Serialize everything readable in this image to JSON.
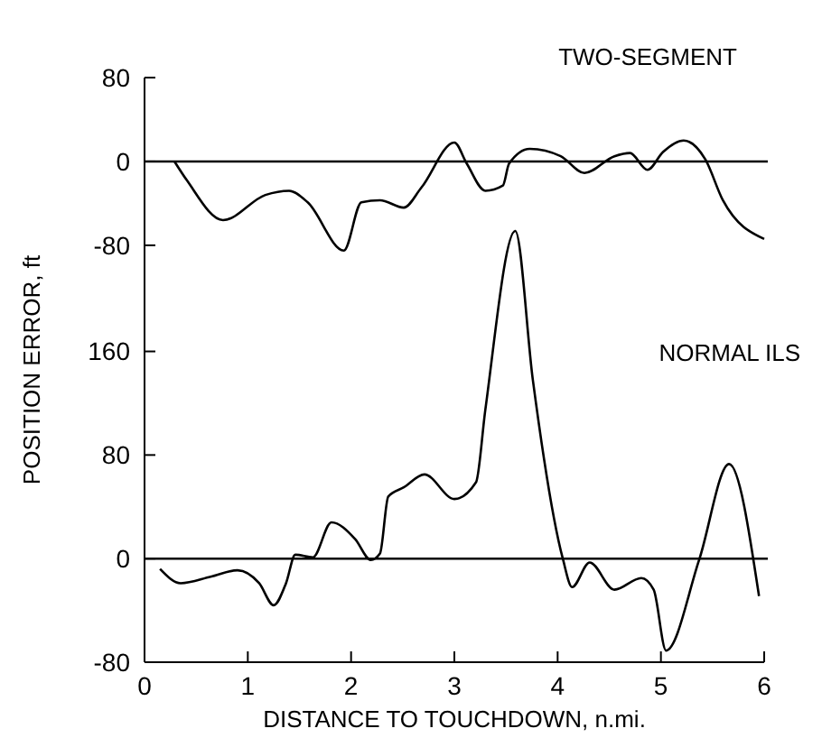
{
  "chart_data": [
    {
      "type": "line",
      "xlim": [
        0,
        6
      ],
      "ylim": [
        -88,
        80
      ],
      "yticks": [
        80,
        0,
        -80
      ],
      "tick_labels": "y",
      "grid": false,
      "ref_lines": [
        {
          "axis": "y",
          "value": 0
        }
      ],
      "series": [
        {
          "name": "TWO-SEGMENT",
          "color": "#000000",
          "x": [
            0.29,
            0.41,
            0.76,
            1.17,
            1.4,
            1.58,
            1.93,
            2.1,
            2.28,
            2.51,
            2.68,
            3.0,
            3.12,
            3.3,
            3.47,
            3.53,
            3.73,
            4.03,
            4.26,
            4.55,
            4.7,
            4.87,
            5.02,
            5.22,
            5.43,
            5.6,
            6.0
          ],
          "values": [
            0,
            -18,
            -56,
            -32,
            -28,
            -39,
            -85,
            -39,
            -37,
            -44,
            -25,
            18,
            -2,
            -28,
            -23,
            -2,
            12,
            5,
            -11,
            5,
            8,
            -8,
            9,
            20,
            2,
            -37,
            -74
          ]
        }
      ]
    },
    {
      "type": "line",
      "xlabel": "DISTANCE TO TOUCHDOWN, n.mi.",
      "ylabel": "POSITION ERROR, ft",
      "xlim": [
        0,
        6
      ],
      "xticks": [
        0,
        1,
        2,
        3,
        4,
        5,
        6
      ],
      "ylim": [
        -80,
        260
      ],
      "yticks": [
        -80,
        0,
        80,
        160
      ],
      "grid": false,
      "ref_lines": [
        {
          "axis": "y",
          "value": 0
        }
      ],
      "series": [
        {
          "name": "NORMAL ILS",
          "color": "#000000",
          "x": [
            0.15,
            0.35,
            0.64,
            0.9,
            1.11,
            1.25,
            1.37,
            1.46,
            1.63,
            1.81,
            2.04,
            2.19,
            2.28,
            2.36,
            2.51,
            2.71,
            3.0,
            3.21,
            3.3,
            3.59,
            3.76,
            4.05,
            4.14,
            4.31,
            4.55,
            4.81,
            4.93,
            5.05,
            5.37,
            5.66,
            5.95
          ],
          "values": [
            -8,
            -19,
            -14,
            -9,
            -19,
            -36,
            -19,
            3,
            1,
            28,
            15,
            -1,
            4,
            48,
            55,
            65,
            46,
            59,
            115,
            253,
            138,
            0,
            -22,
            -3,
            -24,
            -15,
            -24,
            -71,
            -1,
            73,
            -29
          ]
        }
      ]
    }
  ]
}
